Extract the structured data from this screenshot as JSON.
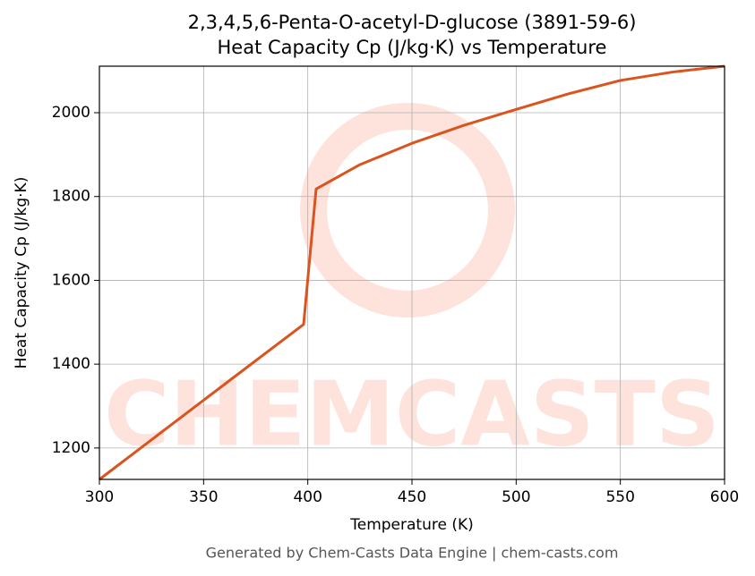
{
  "chart_data": {
    "type": "line",
    "title": "2,3,4,5,6-Penta-O-acetyl-D-glucose (3891-59-6)",
    "subtitle": "Heat Capacity Cp (J/kg·K) vs Temperature",
    "x_label": "Temperature (K)",
    "y_label": "Heat Capacity Cp (J/kg·K)",
    "footer": "Generated by Chem-Casts Data Engine | chem-casts.com",
    "watermark": "CHEMCASTS",
    "x": [
      300,
      350,
      398,
      404,
      425,
      450,
      475,
      500,
      525,
      550,
      575,
      600
    ],
    "series": [
      {
        "name": "Cp",
        "color": "#d9541e",
        "values": [
          1125,
          1314,
          1495,
          1818,
          1876,
          1927,
          1970,
          2008,
          2045,
          2077,
          2097,
          2111
        ]
      }
    ],
    "xlim": [
      300,
      600
    ],
    "xticks": [
      300,
      350,
      400,
      450,
      500,
      550,
      600
    ],
    "ylim": [
      1125,
      2111
    ],
    "yticks": [
      1200,
      1400,
      1600,
      1800,
      2000
    ],
    "grid": true
  }
}
